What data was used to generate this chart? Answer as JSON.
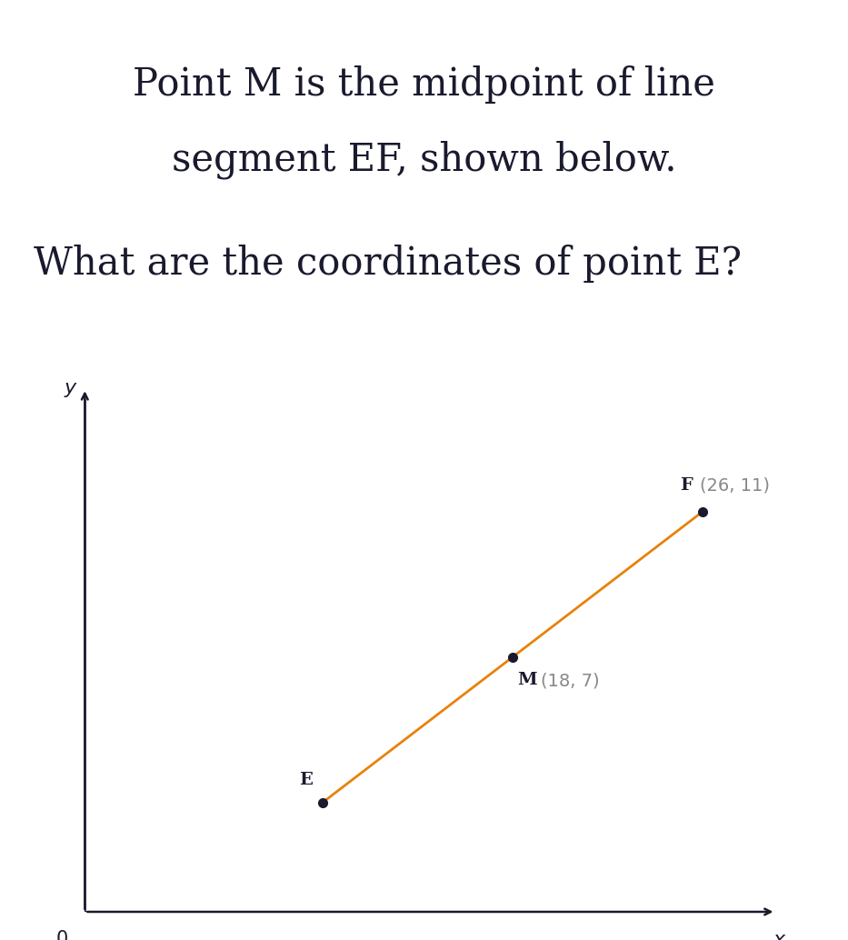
{
  "title_line1": "Point M is the midpoint of line",
  "title_line2": "segment EF, shown below.",
  "question": "What are the coordinates of point E?",
  "point_E": [
    10,
    3
  ],
  "point_M": [
    18,
    7
  ],
  "point_F": [
    26,
    11
  ],
  "line_color": "#E8820C",
  "point_color": "#1a1a2e",
  "axis_color": "#1a1a2e",
  "label_bold_color": "#1a1a2e",
  "label_gray_color": "#888888",
  "bg_color": "#ffffff",
  "title_color": "#1a1a2e",
  "xlim": [
    0,
    30
  ],
  "ylim": [
    0,
    15
  ],
  "title_fontsize": 30,
  "question_fontsize": 30,
  "label_fontsize": 14
}
